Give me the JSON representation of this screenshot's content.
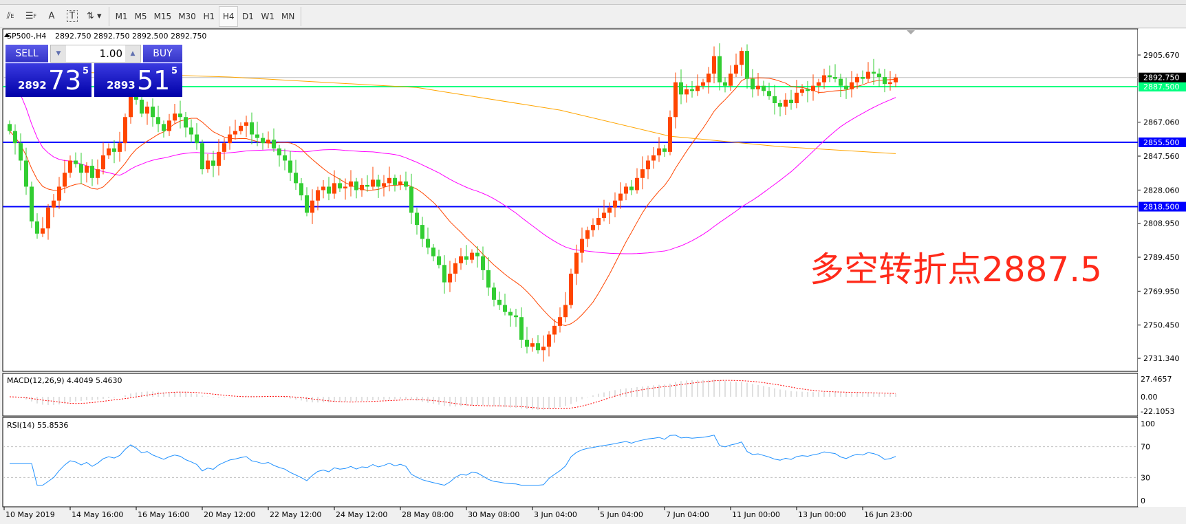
{
  "toolbar": {
    "tools": [
      {
        "icon": "fibonacci-expansion-icon"
      },
      {
        "icon": "fibonacci-lines-icon"
      },
      {
        "icon": "text-icon",
        "label": "A"
      },
      {
        "icon": "text-label-icon",
        "label": "T"
      },
      {
        "icon": "arrows-dropdown-icon"
      }
    ],
    "timeframes": [
      "M1",
      "M5",
      "M15",
      "M30",
      "H1",
      "H4",
      "D1",
      "W1",
      "MN"
    ],
    "selected": "H4"
  },
  "header": {
    "symbol": "SP500-,H4",
    "ohlc": "2892.750 2892.750 2892.500 2892.750"
  },
  "trade": {
    "sell_label": "SELL",
    "buy_label": "BUY",
    "lot": "1.00",
    "sell_big": "2892",
    "sell_mid": "73",
    "sell_sup": "5",
    "buy_big": "2893",
    "buy_mid": "51",
    "buy_sup": "5"
  },
  "annotation": "多空转折点2887.5",
  "colors": {
    "bull": "#ff4500",
    "bear": "#32cd32",
    "green_line": "#00ff7f",
    "blue_line": "#0000ff",
    "ma_fast": "#ff4500",
    "ma_mid": "#ff00ff",
    "ma_slow": "#ffa500",
    "rsi": "#1e90ff",
    "macd_signal": "#ff0000",
    "macd_hist": "#c0c0c0"
  },
  "chart_data": {
    "type": "candlestick",
    "price_ticks": [
      "2905.670",
      "2867.060",
      "2847.560",
      "2828.060",
      "2808.950",
      "2789.450",
      "2769.950",
      "2750.450",
      "2731.340"
    ],
    "price_ylim": [
      2731.34,
      2905.67
    ],
    "current_price": "2892.750",
    "hlines": [
      {
        "value": "2887.500",
        "color": "#00ff7f"
      },
      {
        "value": "2855.500",
        "color": "#0000ff"
      },
      {
        "value": "2818.500",
        "color": "#0000ff"
      }
    ],
    "x_labels": [
      "10 May 2019",
      "14 May 16:00",
      "16 May 16:00",
      "20 May 12:00",
      "22 May 12:00",
      "24 May 12:00",
      "28 May 08:00",
      "30 May 08:00",
      "3 Jun 04:00",
      "5 Jun 04:00",
      "7 Jun 04:00",
      "11 Jun 00:00",
      "13 Jun 00:00",
      "16 Jun 23:00"
    ],
    "closes": [
      2862,
      2855,
      2845,
      2830,
      2810,
      2803,
      2806,
      2818,
      2822,
      2830,
      2838,
      2845,
      2843,
      2838,
      2842,
      2835,
      2840,
      2848,
      2852,
      2850,
      2855,
      2870,
      2885,
      2880,
      2872,
      2876,
      2870,
      2866,
      2862,
      2868,
      2872,
      2870,
      2864,
      2860,
      2855,
      2840,
      2845,
      2842,
      2850,
      2855,
      2860,
      2862,
      2865,
      2867,
      2860,
      2858,
      2855,
      2857,
      2852,
      2848,
      2845,
      2838,
      2832,
      2825,
      2815,
      2822,
      2828,
      2830,
      2826,
      2832,
      2829,
      2830,
      2833,
      2828,
      2831,
      2830,
      2834,
      2830,
      2832,
      2835,
      2831,
      2833,
      2830,
      2815,
      2808,
      2800,
      2795,
      2790,
      2785,
      2775,
      2780,
      2786,
      2790,
      2788,
      2792,
      2790,
      2782,
      2772,
      2765,
      2762,
      2758,
      2756,
      2755,
      2742,
      2738,
      2740,
      2736,
      2738,
      2745,
      2750,
      2755,
      2762,
      2780,
      2792,
      2800,
      2805,
      2808,
      2812,
      2815,
      2818,
      2822,
      2826,
      2830,
      2828,
      2835,
      2840,
      2845,
      2848,
      2852,
      2850,
      2870,
      2890,
      2883,
      2886,
      2885,
      2888,
      2890,
      2895,
      2905,
      2890,
      2888,
      2895,
      2900,
      2908,
      2892,
      2886,
      2888,
      2885,
      2882,
      2878,
      2876,
      2880,
      2878,
      2884,
      2886,
      2885,
      2888,
      2890,
      2894,
      2893,
      2892,
      2888,
      2886,
      2890,
      2893,
      2892,
      2896,
      2895,
      2893,
      2889,
      2890,
      2892.75
    ],
    "ma_slow": [
      [
        0,
        2897
      ],
      [
        40,
        2893
      ],
      [
        74,
        2887
      ],
      [
        100,
        2874
      ],
      [
        120,
        2859
      ],
      [
        140,
        2853
      ],
      [
        161,
        2849
      ]
    ],
    "macd": {
      "label": "MACD(12,26,9) 4.4049 5.4630",
      "ticks": [
        "27.4657",
        "0.00",
        "-22.1053"
      ]
    },
    "rsi": {
      "label": "RSI(14) 55.8536",
      "ticks": [
        "100",
        "70",
        "30",
        "0"
      ],
      "levels": [
        70,
        30
      ]
    }
  }
}
